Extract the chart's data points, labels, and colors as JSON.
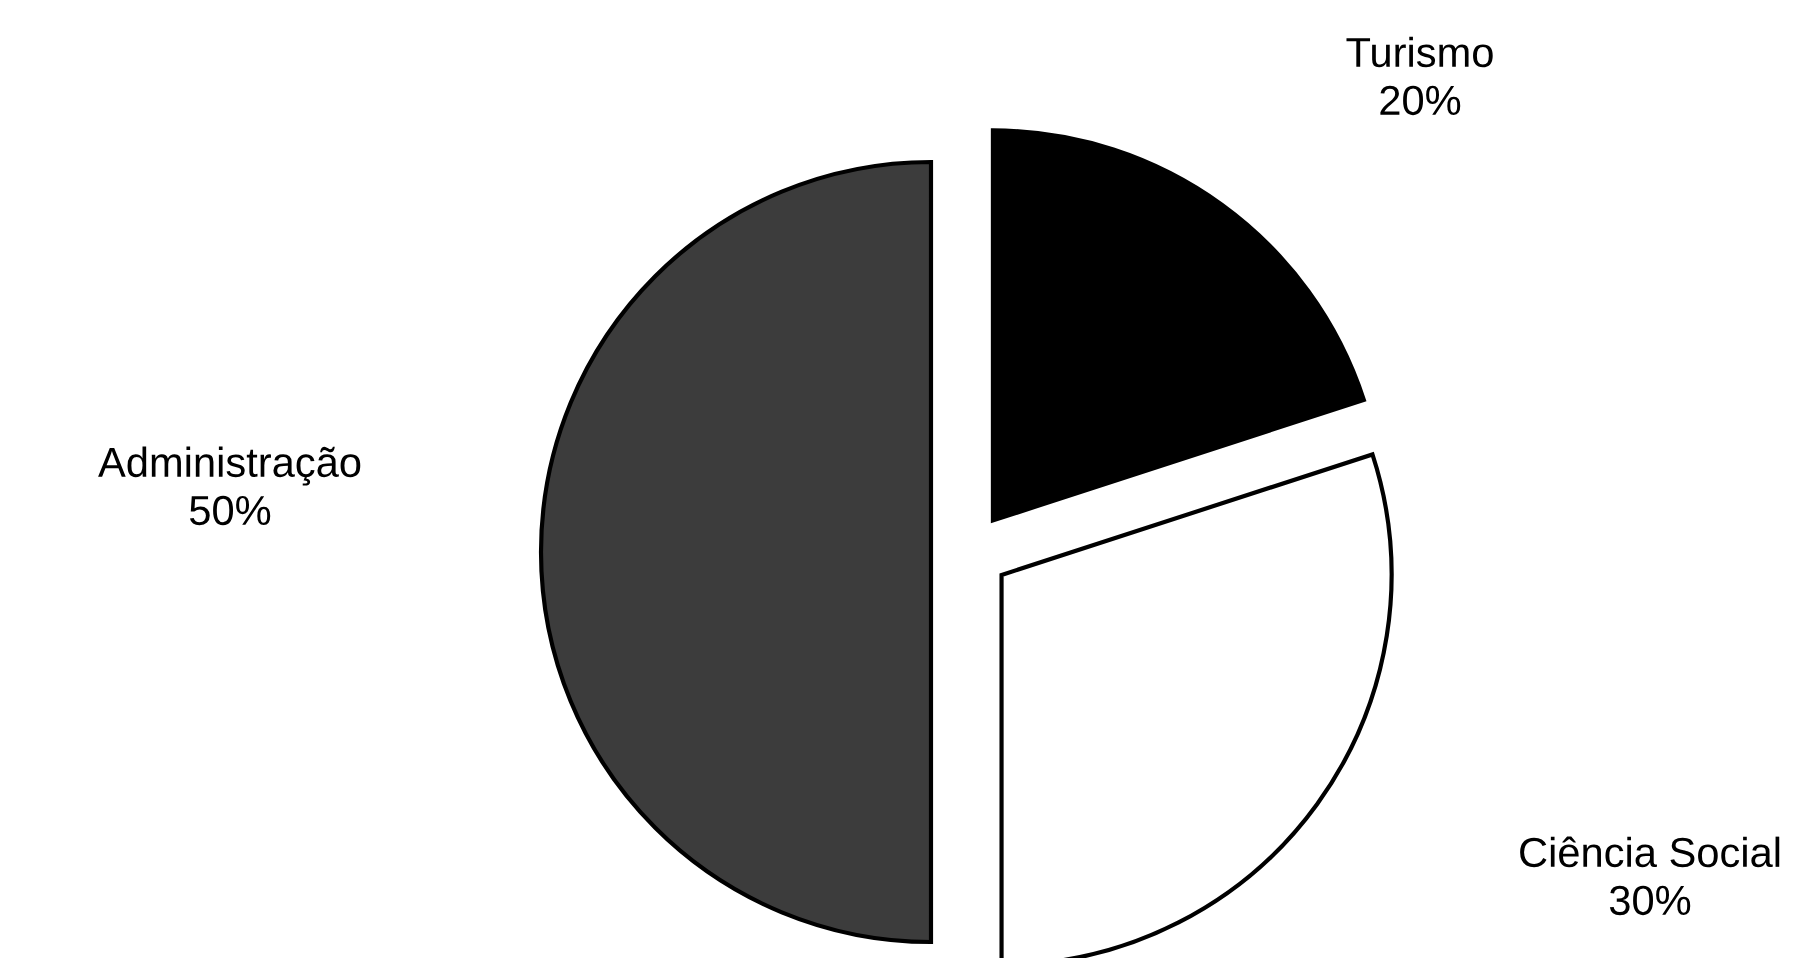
{
  "chart_data": {
    "type": "pie",
    "categories": [
      "Turismo",
      "Ciência Social",
      "Administração"
    ],
    "values": [
      20,
      30,
      50
    ],
    "value_labels": [
      "20%",
      "30%",
      "50%"
    ],
    "colors": [
      "#000000",
      "#ffffff",
      "#3c3c3c"
    ],
    "legend": false
  }
}
